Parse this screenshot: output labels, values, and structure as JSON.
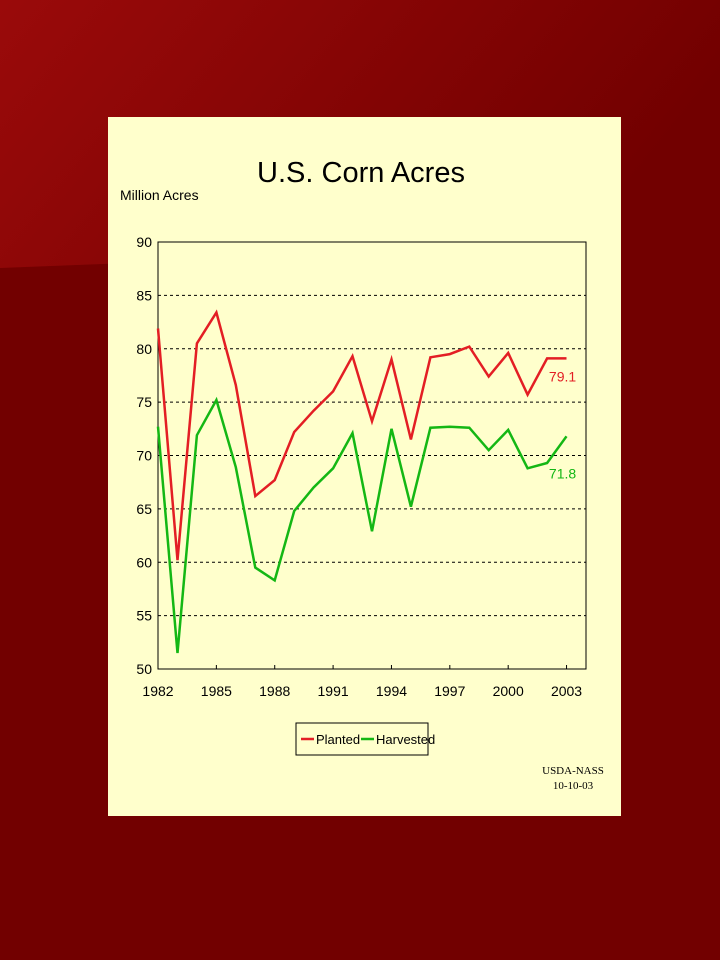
{
  "colors": {
    "slide_background": "#720000",
    "slide_gradient_highlight": "#9a0a0a",
    "panel_background": "#ffffcc",
    "planted": "#e31e24",
    "harvested": "#14b714"
  },
  "source_note": [
    "USDA-NASS",
    "10-10-03"
  ],
  "chart_data": {
    "type": "line",
    "title": "U.S. Corn Acres",
    "ylabel": "Million Acres",
    "xlabel": "",
    "ylim": [
      50,
      90
    ],
    "yticks": [
      50,
      55,
      60,
      65,
      70,
      75,
      80,
      85,
      90
    ],
    "xlim": [
      1982,
      2004
    ],
    "xticks": [
      1982,
      1985,
      1988,
      1991,
      1994,
      1997,
      2000,
      2003
    ],
    "grid": "horizontal dashed",
    "legend_position": "bottom",
    "x": [
      1982,
      1983,
      1984,
      1985,
      1986,
      1987,
      1988,
      1989,
      1990,
      1991,
      1992,
      1993,
      1994,
      1995,
      1996,
      1997,
      1998,
      1999,
      2000,
      2001,
      2002,
      2003
    ],
    "series": [
      {
        "name": "Planted",
        "color": "#e31e24",
        "values": [
          81.9,
          60.2,
          80.5,
          83.4,
          76.6,
          66.2,
          67.7,
          72.2,
          74.2,
          76.0,
          79.3,
          73.2,
          79.0,
          71.5,
          79.2,
          79.5,
          80.2,
          77.4,
          79.6,
          75.7,
          79.1,
          79.1
        ],
        "end_label": "79.1"
      },
      {
        "name": "Harvested",
        "color": "#14b714",
        "values": [
          72.7,
          51.5,
          71.9,
          75.2,
          68.9,
          59.5,
          58.3,
          64.8,
          67.0,
          68.8,
          72.1,
          62.9,
          72.5,
          65.2,
          72.6,
          72.7,
          72.6,
          70.5,
          72.4,
          68.8,
          69.3,
          71.8
        ],
        "end_label": "71.8"
      }
    ]
  }
}
